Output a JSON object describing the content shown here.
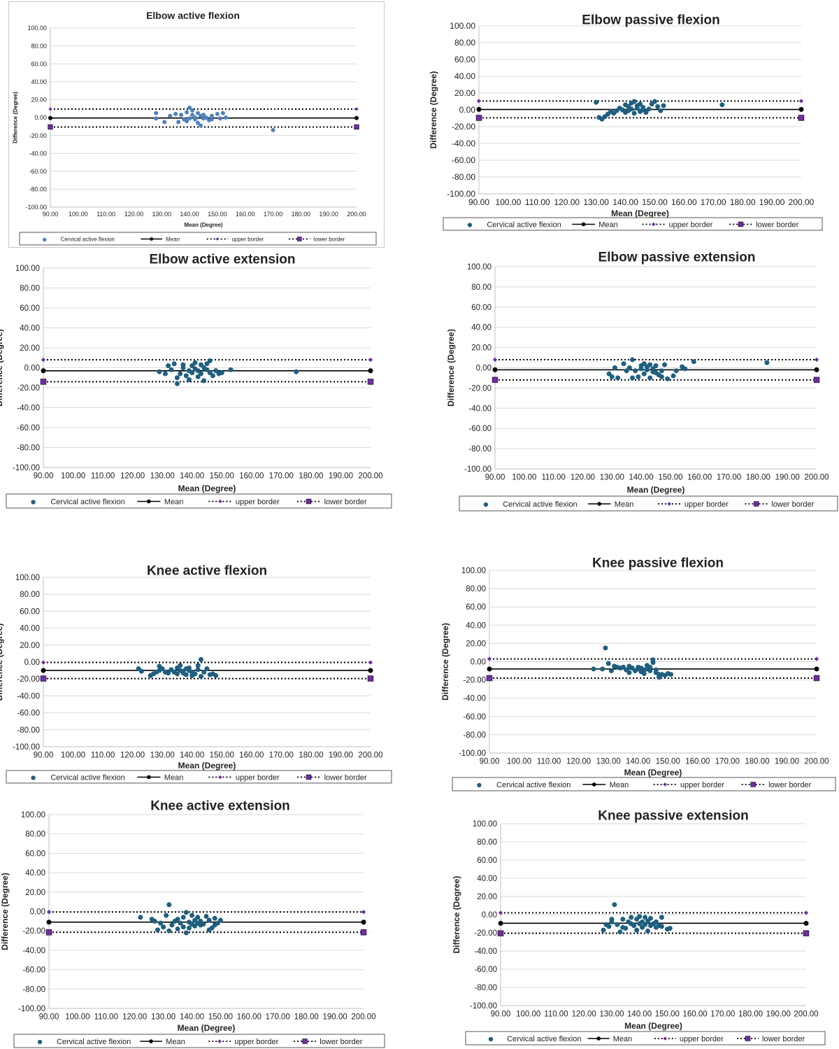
{
  "legend": {
    "series": "Cervical active flexion",
    "mean": "Mean",
    "upper": "upper border",
    "lower": "lower border"
  },
  "axis_titles": {
    "x": "Mean (Degree)",
    "y": "Difference (Degree)"
  },
  "x_ticks": [
    "90.00",
    "100.00",
    "110.00",
    "120.00",
    "130.00",
    "140.00",
    "150.00",
    "160.00",
    "170.00",
    "180.00",
    "190.00",
    "200.00"
  ],
  "y_ticks": [
    "100.00",
    "80.00",
    "60.00",
    "40.00",
    "20.00",
    "0.00",
    "-20.00",
    "-40.00",
    "-60.00",
    "-80.00",
    "-100.00"
  ],
  "colors": {
    "points": "#1f5f7f",
    "points_first": "#4f81bd",
    "mean": "#000000",
    "upper": "#7030a0",
    "lower": "#7030a0"
  },
  "chart_data": [
    {
      "type": "scatter",
      "title": "Elbow active flexion",
      "xlabel": "Mean (Degree)",
      "ylabel": "Difference (Degree)",
      "xlim": [
        90,
        200
      ],
      "ylim": [
        -100,
        100
      ],
      "mean": -0.5,
      "upper_border": 9.5,
      "lower_border": -10.5,
      "legend_position": "bottom",
      "grid": true,
      "points": [
        [
          128,
          5
        ],
        [
          128,
          -1
        ],
        [
          131,
          -5
        ],
        [
          133,
          2
        ],
        [
          135,
          4
        ],
        [
          136,
          -5
        ],
        [
          137,
          3
        ],
        [
          138,
          -2
        ],
        [
          139,
          -4
        ],
        [
          139,
          6
        ],
        [
          140,
          11
        ],
        [
          140,
          -1
        ],
        [
          141,
          8
        ],
        [
          141,
          3
        ],
        [
          142,
          -2
        ],
        [
          142,
          0
        ],
        [
          143,
          5
        ],
        [
          143,
          -6
        ],
        [
          144,
          2
        ],
        [
          144,
          -9
        ],
        [
          145,
          -1
        ],
        [
          145,
          3
        ],
        [
          146,
          0
        ],
        [
          147,
          -3
        ],
        [
          148,
          2
        ],
        [
          148,
          -2
        ],
        [
          150,
          4
        ],
        [
          151,
          -1
        ],
        [
          152,
          5
        ],
        [
          153,
          0
        ],
        [
          170,
          -14
        ]
      ]
    },
    {
      "type": "scatter",
      "title": "Elbow passive flexion",
      "xlabel": "Mean (Degree)",
      "ylabel": "Difference (Degree)",
      "xlim": [
        90,
        200
      ],
      "ylim": [
        -100,
        100
      ],
      "mean": 0.5,
      "upper_border": 10.5,
      "lower_border": -9.5,
      "legend_position": "bottom",
      "grid": true,
      "points": [
        [
          130,
          9
        ],
        [
          131,
          -9
        ],
        [
          132,
          -11
        ],
        [
          133,
          -8
        ],
        [
          134,
          -5
        ],
        [
          135,
          -2
        ],
        [
          136,
          -4
        ],
        [
          137,
          -1
        ],
        [
          138,
          2
        ],
        [
          139,
          0
        ],
        [
          140,
          -3
        ],
        [
          140,
          6
        ],
        [
          141,
          4
        ],
        [
          141,
          -1
        ],
        [
          142,
          8
        ],
        [
          142,
          1
        ],
        [
          143,
          10
        ],
        [
          143,
          -4
        ],
        [
          144,
          5
        ],
        [
          144,
          2
        ],
        [
          145,
          -2
        ],
        [
          145,
          7
        ],
        [
          146,
          0
        ],
        [
          146,
          3
        ],
        [
          147,
          -3
        ],
        [
          148,
          1
        ],
        [
          149,
          7
        ],
        [
          150,
          10
        ],
        [
          151,
          4
        ],
        [
          152,
          -1
        ],
        [
          153,
          5
        ],
        [
          173,
          6
        ]
      ]
    },
    {
      "type": "scatter",
      "title": "Elbow active extension",
      "xlabel": "Mean (Degree)",
      "ylabel": "Difference (Degree)",
      "xlim": [
        90,
        200
      ],
      "ylim": [
        -100,
        100
      ],
      "mean": -3,
      "upper_border": 8,
      "lower_border": -14,
      "legend_position": "bottom",
      "grid": true,
      "points": [
        [
          129,
          -4
        ],
        [
          131,
          -6
        ],
        [
          132,
          2
        ],
        [
          133,
          -2
        ],
        [
          134,
          4
        ],
        [
          135,
          -10
        ],
        [
          135,
          -16
        ],
        [
          136,
          -6
        ],
        [
          137,
          0
        ],
        [
          137,
          3
        ],
        [
          138,
          -8
        ],
        [
          139,
          -3
        ],
        [
          139,
          -12
        ],
        [
          140,
          2
        ],
        [
          140,
          -5
        ],
        [
          141,
          5
        ],
        [
          141,
          -1
        ],
        [
          142,
          -9
        ],
        [
          142,
          -3
        ],
        [
          143,
          3
        ],
        [
          143,
          -6
        ],
        [
          144,
          0
        ],
        [
          144,
          -13
        ],
        [
          145,
          4
        ],
        [
          145,
          -2
        ],
        [
          146,
          -5
        ],
        [
          146,
          7
        ],
        [
          147,
          -8
        ],
        [
          148,
          -3
        ],
        [
          149,
          -6
        ],
        [
          150,
          -5
        ],
        [
          153,
          -2
        ],
        [
          175,
          -4
        ]
      ]
    },
    {
      "type": "scatter",
      "title": "Elbow passive extension",
      "xlabel": "Mean (Degree)",
      "ylabel": "Difference (Degree)",
      "xlim": [
        90,
        200
      ],
      "ylim": [
        -100,
        100
      ],
      "mean": -2,
      "upper_border": 8,
      "lower_border": -12,
      "legend_position": "bottom",
      "grid": true,
      "points": [
        [
          129,
          -6
        ],
        [
          130,
          -9
        ],
        [
          131,
          0
        ],
        [
          132,
          -10
        ],
        [
          134,
          4
        ],
        [
          135,
          -3
        ],
        [
          136,
          0
        ],
        [
          137,
          -10
        ],
        [
          137,
          8
        ],
        [
          138,
          -3
        ],
        [
          139,
          -9
        ],
        [
          140,
          -1
        ],
        [
          140,
          2
        ],
        [
          141,
          4
        ],
        [
          141,
          -6
        ],
        [
          142,
          -2
        ],
        [
          142,
          1
        ],
        [
          143,
          -10
        ],
        [
          143,
          3
        ],
        [
          144,
          -4
        ],
        [
          144,
          -1
        ],
        [
          145,
          2
        ],
        [
          145,
          -5
        ],
        [
          146,
          -7
        ],
        [
          147,
          -3
        ],
        [
          147,
          -9
        ],
        [
          148,
          3
        ],
        [
          149,
          -11
        ],
        [
          151,
          -8
        ],
        [
          152,
          -3
        ],
        [
          154,
          1
        ],
        [
          155,
          -1
        ],
        [
          158,
          6
        ],
        [
          183,
          5
        ]
      ]
    },
    {
      "type": "scatter",
      "title": "Knee active flexion",
      "xlabel": "Mean (Degree)",
      "ylabel": "Difference (Degree)",
      "xlim": [
        90,
        200
      ],
      "ylim": [
        -100,
        100
      ],
      "mean": -10,
      "upper_border": -0.5,
      "lower_border": -19.5,
      "legend_position": "bottom",
      "grid": true,
      "points": [
        [
          122,
          -8
        ],
        [
          123,
          -11
        ],
        [
          126,
          -16
        ],
        [
          127,
          -14
        ],
        [
          128,
          -12
        ],
        [
          129,
          -5
        ],
        [
          129,
          -10
        ],
        [
          130,
          -8
        ],
        [
          131,
          -12
        ],
        [
          132,
          -13
        ],
        [
          133,
          -9
        ],
        [
          134,
          -12
        ],
        [
          135,
          -7
        ],
        [
          135,
          -14
        ],
        [
          136,
          -10
        ],
        [
          136,
          -4
        ],
        [
          137,
          -11
        ],
        [
          137,
          -13
        ],
        [
          138,
          -8
        ],
        [
          138,
          -15
        ],
        [
          139,
          -7
        ],
        [
          139,
          -10
        ],
        [
          140,
          -12
        ],
        [
          140,
          -16
        ],
        [
          141,
          -14
        ],
        [
          142,
          -4
        ],
        [
          142,
          -9
        ],
        [
          143,
          3
        ],
        [
          143,
          -17
        ],
        [
          144,
          -12
        ],
        [
          145,
          -8
        ],
        [
          146,
          -15
        ],
        [
          147,
          -14
        ],
        [
          148,
          -16
        ]
      ]
    },
    {
      "type": "scatter",
      "title": "Knee passive flexion",
      "xlabel": "Mean (Degree)",
      "ylabel": "Difference (Degree)",
      "xlim": [
        90,
        200
      ],
      "ylim": [
        -100,
        100
      ],
      "mean": -8,
      "upper_border": 3,
      "lower_border": -18,
      "legend_position": "bottom",
      "grid": true,
      "points": [
        [
          125,
          -8
        ],
        [
          128,
          -8
        ],
        [
          129,
          15
        ],
        [
          130,
          -2
        ],
        [
          131,
          -10
        ],
        [
          132,
          -5
        ],
        [
          133,
          -6
        ],
        [
          134,
          -7
        ],
        [
          135,
          -6
        ],
        [
          136,
          -9
        ],
        [
          137,
          -12
        ],
        [
          137,
          -5
        ],
        [
          138,
          -7
        ],
        [
          139,
          -10
        ],
        [
          140,
          -8
        ],
        [
          140,
          -6
        ],
        [
          141,
          -11
        ],
        [
          141,
          -7
        ],
        [
          142,
          -9
        ],
        [
          142,
          -13
        ],
        [
          143,
          -8
        ],
        [
          143,
          -4
        ],
        [
          144,
          -10
        ],
        [
          144,
          -6
        ],
        [
          145,
          -1
        ],
        [
          145,
          2
        ],
        [
          146,
          -9
        ],
        [
          146,
          -12
        ],
        [
          147,
          -14
        ],
        [
          147,
          -17
        ],
        [
          148,
          -14
        ],
        [
          149,
          -15
        ],
        [
          150,
          -13
        ],
        [
          151,
          -14
        ]
      ]
    },
    {
      "type": "scatter",
      "title": "Knee active extension",
      "xlabel": "Mean (Degree)",
      "ylabel": "Difference (Degree)",
      "xlim": [
        90,
        200
      ],
      "ylim": [
        -100,
        100
      ],
      "mean": -11,
      "upper_border": -0.5,
      "lower_border": -21.5,
      "legend_position": "bottom",
      "grid": true,
      "points": [
        [
          122,
          -6
        ],
        [
          126,
          -8
        ],
        [
          127,
          -10
        ],
        [
          128,
          -19
        ],
        [
          129,
          -12
        ],
        [
          130,
          -16
        ],
        [
          131,
          -4
        ],
        [
          132,
          7
        ],
        [
          132,
          -20
        ],
        [
          133,
          -14
        ],
        [
          134,
          -10
        ],
        [
          135,
          -18
        ],
        [
          135,
          -8
        ],
        [
          136,
          -12
        ],
        [
          137,
          -16
        ],
        [
          137,
          -6
        ],
        [
          138,
          -1
        ],
        [
          138,
          -22
        ],
        [
          139,
          -11
        ],
        [
          139,
          -17
        ],
        [
          140,
          -4
        ],
        [
          140,
          -13
        ],
        [
          141,
          -9
        ],
        [
          141,
          -15
        ],
        [
          142,
          -12
        ],
        [
          142,
          -6
        ],
        [
          143,
          -14
        ],
        [
          143,
          -10
        ],
        [
          144,
          -13
        ],
        [
          145,
          -5
        ],
        [
          146,
          -19
        ],
        [
          146,
          -9
        ],
        [
          147,
          -17
        ],
        [
          148,
          -7
        ],
        [
          148,
          -14
        ],
        [
          149,
          -12
        ],
        [
          150,
          -9
        ]
      ]
    },
    {
      "type": "scatter",
      "title": "Knee passive extension",
      "xlabel": "Mean (Degree)",
      "ylabel": "Difference (Degree)",
      "xlim": [
        90,
        200
      ],
      "ylim": [
        -100,
        100
      ],
      "mean": -9.5,
      "upper_border": 2,
      "lower_border": -20.5,
      "legend_position": "bottom",
      "grid": true,
      "points": [
        [
          127,
          -17
        ],
        [
          128,
          -11
        ],
        [
          129,
          -13
        ],
        [
          130,
          -5
        ],
        [
          130,
          -8
        ],
        [
          131,
          11
        ],
        [
          132,
          -11
        ],
        [
          133,
          -19
        ],
        [
          134,
          -5
        ],
        [
          134,
          -14
        ],
        [
          135,
          -15
        ],
        [
          136,
          -8
        ],
        [
          137,
          -10
        ],
        [
          137,
          -3
        ],
        [
          138,
          -12
        ],
        [
          139,
          -17
        ],
        [
          139,
          -5
        ],
        [
          140,
          -10
        ],
        [
          140,
          -2
        ],
        [
          141,
          -8
        ],
        [
          141,
          -14
        ],
        [
          142,
          -11
        ],
        [
          142,
          -3
        ],
        [
          143,
          -7
        ],
        [
          143,
          -18
        ],
        [
          144,
          -12
        ],
        [
          144,
          -4
        ],
        [
          145,
          -10
        ],
        [
          146,
          -14
        ],
        [
          146,
          -8
        ],
        [
          147,
          -12
        ],
        [
          148,
          -13
        ],
        [
          148,
          -3
        ],
        [
          150,
          -16
        ],
        [
          151,
          -15
        ]
      ]
    }
  ]
}
